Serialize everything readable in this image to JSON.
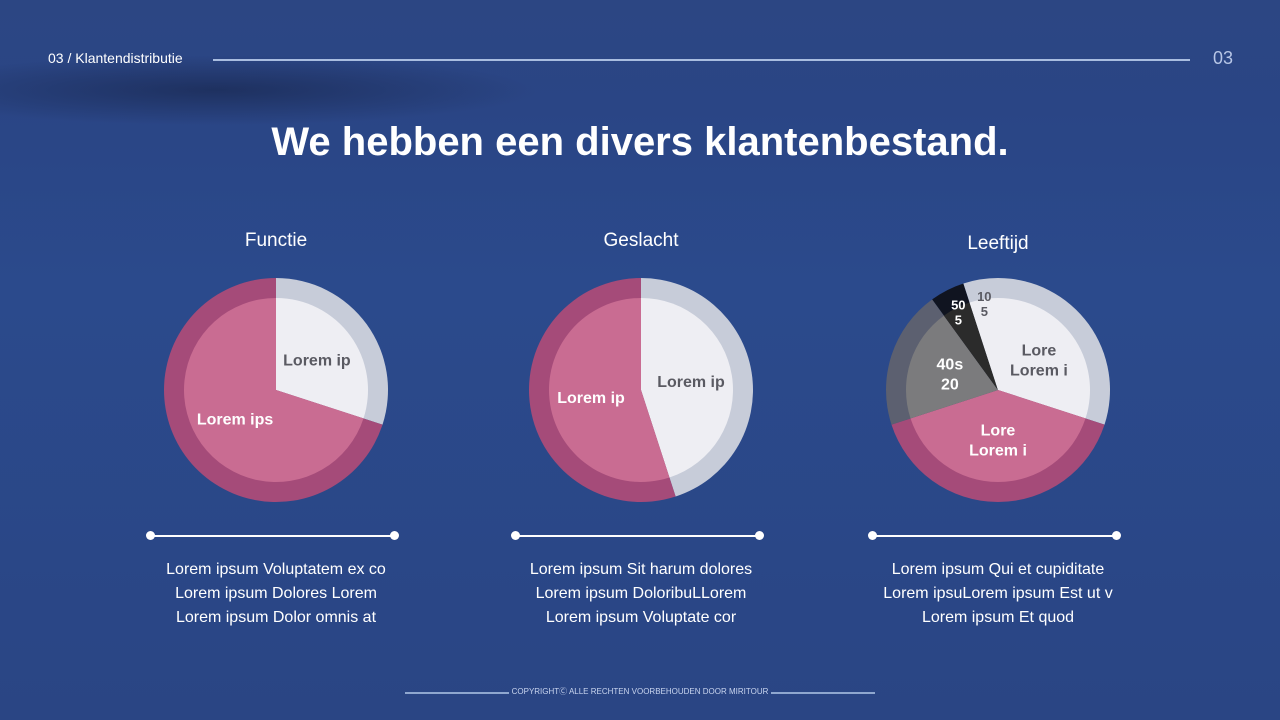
{
  "header": {
    "section_label": "03 / Klantendistributie",
    "page_number": "03"
  },
  "title": "We hebben een divers klantenbestand.",
  "colors": {
    "pink": "#c96c92",
    "pink_ring": "#a54b79",
    "white": "#eeeef3",
    "white_ring": "#c7ccd9",
    "grey": "#7b7b7d",
    "grey_ring": "#5c6070",
    "black": "#2b2b2b",
    "black_ring": "#101420"
  },
  "chart_data": [
    {
      "type": "pie",
      "title": "Functie",
      "slices": [
        {
          "label": "Lorem ip",
          "value": 30,
          "color": "white"
        },
        {
          "label": "Lorem ips",
          "value": 70,
          "color": "pink"
        }
      ]
    },
    {
      "type": "pie",
      "title": "Geslacht",
      "slices": [
        {
          "label": "Lorem ip",
          "value": 45,
          "color": "white"
        },
        {
          "label": "Lorem ip",
          "value": 55,
          "color": "pink"
        }
      ]
    },
    {
      "type": "pie",
      "title": "Leeftijd",
      "slices": [
        {
          "label": "Lore\nLorem i",
          "value": 30,
          "color": "white"
        },
        {
          "label": "Lore\nLorem i",
          "value": 40,
          "color": "pink"
        },
        {
          "label": "40s\n20",
          "value": 20,
          "color": "grey"
        },
        {
          "label": "50\n5",
          "value": 5,
          "color": "black"
        },
        {
          "label": "10\n5",
          "value": 5,
          "color": "white"
        }
      ]
    }
  ],
  "descriptions": [
    [
      "Lorem ipsum Voluptatem ex co",
      "Lorem ipsum Dolores Lorem",
      "Lorem ipsum Dolor omnis at"
    ],
    [
      "Lorem ipsum Sit harum dolores",
      "Lorem ipsum DoloribuLLorem",
      "Lorem ipsum Voluptate cor"
    ],
    [
      "Lorem ipsum Qui et cupiditate",
      "Lorem ipsuLorem ipsum Est ut v",
      "Lorem ipsum Et quod"
    ]
  ],
  "footer": "COPYRIGHTⒸ ALLE RECHTEN VOORBEHOUDEN DOOR MIRITOUR"
}
